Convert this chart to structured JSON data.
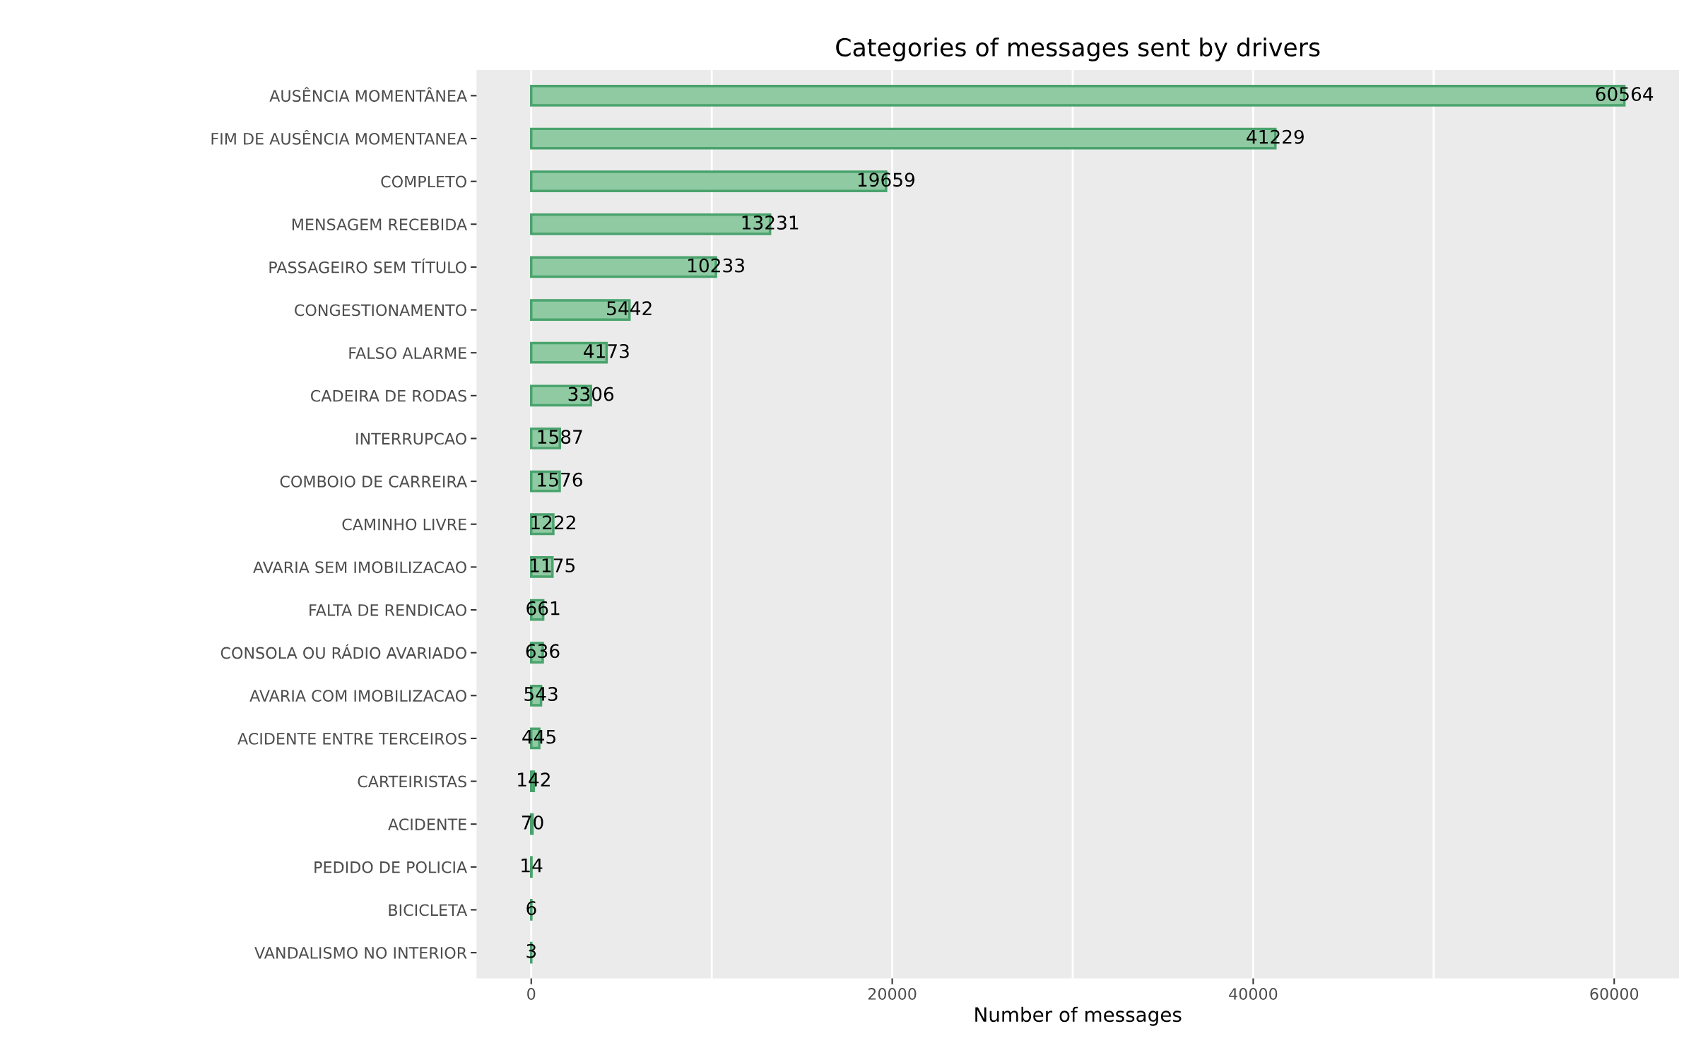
{
  "chart_data": {
    "type": "bar",
    "orientation": "horizontal",
    "title": "Categories of messages sent by drivers",
    "xlabel": "Number of messages",
    "categories": [
      "AUSÊNCIA MOMENTÂNEA",
      "FIM DE AUSÊNCIA MOMENTANEA",
      "COMPLETO",
      "MENSAGEM RECEBIDA",
      "PASSAGEIRO SEM TÍTULO",
      "CONGESTIONAMENTO",
      "FALSO ALARME",
      "CADEIRA DE RODAS",
      "INTERRUPCAO",
      "COMBOIO DE CARREIRA",
      "CAMINHO LIVRE",
      "AVARIA SEM IMOBILIZACAO",
      "FALTA DE RENDICAO",
      "CONSOLA OU RÁDIO AVARIADO",
      "AVARIA COM IMOBILIZACAO",
      "ACIDENTE ENTRE TERCEIROS",
      "CARTEIRISTAS",
      "ACIDENTE",
      "PEDIDO DE POLICIA",
      "BICICLETA",
      "VANDALISMO NO INTERIOR"
    ],
    "values": [
      60564,
      41229,
      19659,
      13231,
      10233,
      5442,
      4173,
      3306,
      1587,
      1576,
      1222,
      1175,
      661,
      636,
      543,
      445,
      142,
      70,
      14,
      6,
      3
    ],
    "color": "#8fcaa3",
    "data_labels": true,
    "xlim": [
      -3028,
      63592
    ],
    "xticks": [
      0,
      {
        "value": 10000,
        "label": null
      },
      20000,
      {
        "value": 30000,
        "label": null
      },
      40000,
      {
        "value": 50000,
        "label": null
      },
      60000
    ],
    "grid": "x",
    "legend": false
  }
}
